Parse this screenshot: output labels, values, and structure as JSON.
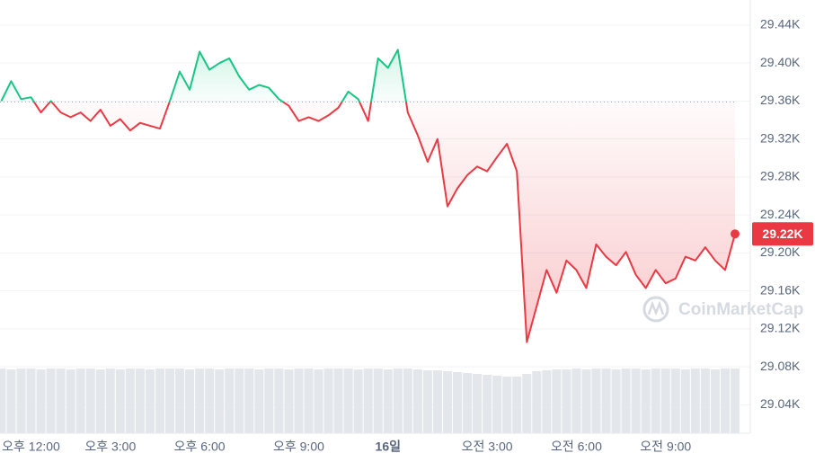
{
  "chart_data": {
    "type": "line",
    "categories": [
      null,
      null,
      null,
      "오후 12:00",
      null,
      null,
      null,
      null,
      null,
      null,
      null,
      "오후 3:00",
      null,
      null,
      null,
      null,
      null,
      null,
      null,
      null,
      "오후 6:00",
      null,
      null,
      null,
      null,
      null,
      null,
      null,
      null,
      null,
      "오후 9:00",
      null,
      null,
      null,
      null,
      null,
      null,
      null,
      null,
      "16일",
      null,
      null,
      null,
      null,
      null,
      null,
      null,
      null,
      null,
      "오전 3:00",
      null,
      null,
      null,
      null,
      null,
      null,
      null,
      null,
      "오전 6:00",
      null,
      null,
      null,
      null,
      null,
      null,
      null,
      null,
      "오전 9:00",
      null,
      null,
      null,
      null,
      null,
      null,
      null
    ],
    "values": [
      29.36,
      29.381,
      29.362,
      29.364,
      29.348,
      29.36,
      29.348,
      29.343,
      29.348,
      29.339,
      29.351,
      29.334,
      29.341,
      29.329,
      29.337,
      29.334,
      29.331,
      29.36,
      29.391,
      29.372,
      29.412,
      29.393,
      29.4,
      29.405,
      29.386,
      29.372,
      29.377,
      29.374,
      29.362,
      29.355,
      29.339,
      29.343,
      29.339,
      29.345,
      29.353,
      29.37,
      29.362,
      29.339,
      29.405,
      29.395,
      29.414,
      29.348,
      29.324,
      29.296,
      29.32,
      29.249,
      29.268,
      29.282,
      29.291,
      29.286,
      29.301,
      29.315,
      29.286,
      29.106,
      29.144,
      29.182,
      29.158,
      29.192,
      29.182,
      29.163,
      29.209,
      29.196,
      29.187,
      29.201,
      29.177,
      29.163,
      29.182,
      29.168,
      29.173,
      29.196,
      29.192,
      29.206,
      29.192,
      29.182,
      29.22
    ],
    "volume": [
      72,
      71,
      72,
      72,
      71,
      72,
      72,
      71,
      72,
      72,
      71,
      72,
      71,
      72,
      72,
      71,
      72,
      72,
      72,
      71,
      72,
      72,
      71,
      72,
      72,
      72,
      71,
      72,
      72,
      71,
      72,
      72,
      71,
      72,
      72,
      72,
      71,
      72,
      72,
      71,
      72,
      72,
      71,
      70,
      70,
      69,
      68,
      67,
      66,
      65,
      64,
      63,
      63,
      66,
      69,
      70,
      71,
      71,
      72,
      71,
      72,
      72,
      71,
      72,
      72,
      71,
      72,
      72,
      72,
      71,
      72,
      72,
      71,
      72,
      72
    ],
    "baseline": 29.359,
    "up_color": "#16c784",
    "down_color": "#ea3943",
    "last_label": {
      "value": 29.22,
      "label": "29.22K"
    },
    "ylim": [
      29.01,
      29.4665
    ],
    "yticks": [
      {
        "value": 29.44,
        "label": "29.44K"
      },
      {
        "value": 29.4,
        "label": "29.40K"
      },
      {
        "value": 29.36,
        "label": "29.36K"
      },
      {
        "value": 29.32,
        "label": "29.32K"
      },
      {
        "value": 29.28,
        "label": "29.28K"
      },
      {
        "value": 29.24,
        "label": "29.24K"
      },
      {
        "value": 29.2,
        "label": "29.20K"
      },
      {
        "value": 29.16,
        "label": "29.16K"
      },
      {
        "value": 29.12,
        "label": "29.12K"
      },
      {
        "value": 29.08,
        "label": "29.08K"
      },
      {
        "value": 29.04,
        "label": "29.04K"
      }
    ],
    "grid": true,
    "watermark": "CoinMarketCap"
  }
}
